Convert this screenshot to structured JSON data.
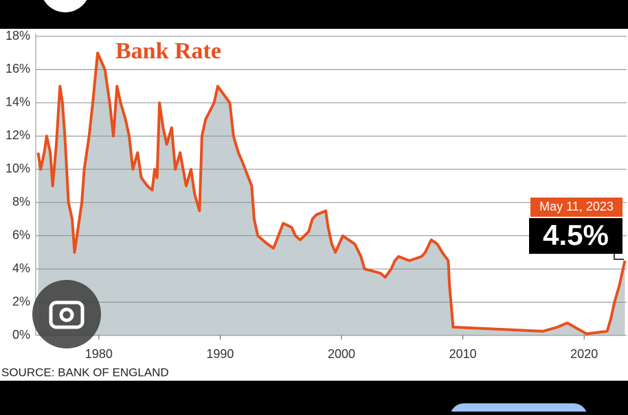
{
  "chart_data": {
    "type": "line",
    "title": "Bank Rate",
    "source": "SOURCE: BANK OF ENGLAND",
    "annotation": {
      "date": "May 11, 2023",
      "label": "4.5%"
    },
    "color": "#e8501e",
    "area_color": "#c5cfd1",
    "grid": true,
    "xlim": [
      1974.8,
      2023.5
    ],
    "xticks": [
      1980,
      1990,
      2000,
      2010,
      2020
    ],
    "ylim": [
      0,
      18
    ],
    "yticks": [
      {
        "value": 0,
        "label": "0%"
      },
      {
        "value": 2,
        "label": "2%"
      },
      {
        "value": 4,
        "label": "4%"
      },
      {
        "value": 6,
        "label": "6%"
      },
      {
        "value": 8,
        "label": "8%"
      },
      {
        "value": 10,
        "label": "10%"
      },
      {
        "value": 12,
        "label": "12%"
      },
      {
        "value": 14,
        "label": "14%"
      },
      {
        "value": 16,
        "label": "16%"
      },
      {
        "value": 18,
        "label": "18%"
      }
    ],
    "x": [
      1975.0,
      1975.2,
      1975.5,
      1975.7,
      1976.0,
      1976.2,
      1976.5,
      1976.8,
      1977.0,
      1977.2,
      1977.5,
      1977.8,
      1978.0,
      1978.3,
      1978.6,
      1978.8,
      1979.2,
      1979.5,
      1979.9,
      1980.5,
      1980.9,
      1981.2,
      1981.5,
      1981.8,
      1982.2,
      1982.5,
      1982.8,
      1983.2,
      1983.5,
      1984.0,
      1984.4,
      1984.6,
      1984.8,
      1985.0,
      1985.3,
      1985.6,
      1986.0,
      1986.3,
      1986.7,
      1987.2,
      1987.6,
      1987.9,
      1988.3,
      1988.5,
      1988.8,
      1989.5,
      1989.8,
      1990.8,
      1991.1,
      1991.5,
      1991.8,
      1992.6,
      1992.8,
      1993.1,
      1993.9,
      1994.4,
      1994.8,
      1995.2,
      1995.9,
      1996.2,
      1996.6,
      1997.3,
      1997.6,
      1997.9,
      1998.7,
      1998.9,
      1999.2,
      1999.5,
      1999.8,
      2000.1,
      2001.1,
      2001.6,
      2001.9,
      2003.2,
      2003.6,
      2004.1,
      2004.4,
      2004.7,
      2005.6,
      2006.6,
      2006.9,
      2007.4,
      2007.9,
      2008.3,
      2008.8,
      2008.9,
      2009.2,
      2016.6,
      2017.8,
      2018.6,
      2020.2,
      2021.9,
      2022.2,
      2022.5,
      2022.9,
      2023.2,
      2023.36
    ],
    "values": [
      11,
      10,
      11,
      12,
      11,
      9,
      11.5,
      15,
      14,
      12,
      8,
      7,
      5,
      6.5,
      8,
      10,
      12,
      14,
      17,
      16,
      14,
      12,
      15,
      14,
      13,
      12,
      10,
      11,
      9.5,
      9,
      8.75,
      10,
      9.5,
      14,
      12.5,
      11.5,
      12.5,
      10,
      11,
      9,
      10,
      8.5,
      7.5,
      12,
      13,
      14,
      15,
      14,
      12,
      11,
      10.5,
      9,
      7,
      6,
      5.5,
      5.25,
      6,
      6.75,
      6.5,
      6,
      5.75,
      6.25,
      7,
      7.25,
      7.5,
      6.5,
      5.5,
      5,
      5.5,
      6,
      5.5,
      4.75,
      4,
      3.75,
      3.5,
      4,
      4.5,
      4.75,
      4.5,
      4.75,
      5,
      5.75,
      5.5,
      5,
      4.5,
      3,
      0.5,
      0.25,
      0.5,
      0.75,
      0.1,
      0.25,
      1,
      2,
      3,
      4,
      4.5
    ]
  }
}
